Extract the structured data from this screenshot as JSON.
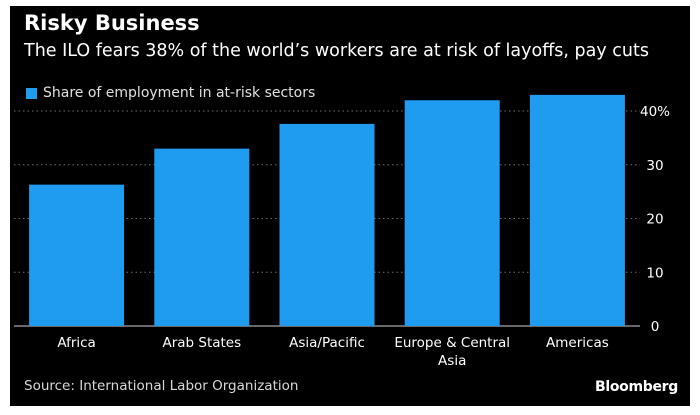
{
  "header": {
    "title": "Risky Business",
    "subtitle": "The ILO fears 38% of the world’s workers are at risk of layoffs, pay cuts"
  },
  "legend": {
    "label": "Share of employment in at-risk sectors"
  },
  "footer": {
    "source": "Source: International Labor Organization",
    "brand": "Bloomberg"
  },
  "colors": {
    "background": "#000000",
    "bar": "#1f9bf0",
    "text": "#ffffff",
    "gridline": "#6e6e6e"
  },
  "chart_data": {
    "type": "bar",
    "categories": [
      "Africa",
      "Arab States",
      "Asia/Pacific",
      "Europe & Central Asia",
      "Americas"
    ],
    "series": [
      {
        "name": "Share of employment in at-risk sectors",
        "values": [
          26.3,
          33.0,
          37.6,
          42.0,
          43.0
        ]
      }
    ],
    "ylim": [
      0,
      40
    ],
    "yticks": [
      0,
      10,
      20,
      30,
      40
    ],
    "ytick_labels": [
      "0",
      "10",
      "20",
      "30",
      "40%"
    ],
    "axis_position": "right",
    "grid": true
  }
}
